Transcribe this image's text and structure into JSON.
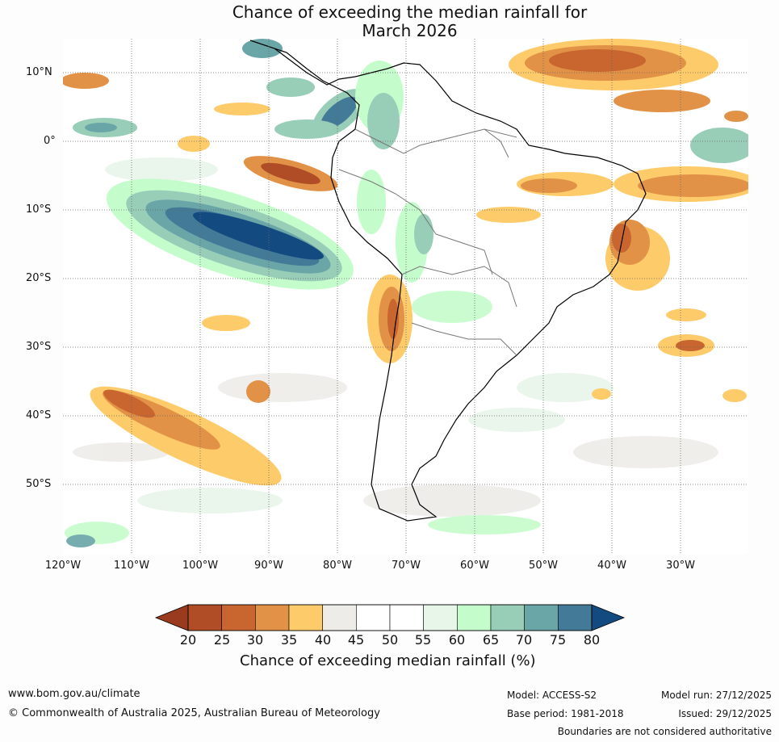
{
  "title_line1": "Chance of exceeding the median rainfall for",
  "title_line2": "March 2026",
  "latitude_labels": [
    "10°N",
    "0°",
    "10°S",
    "20°S",
    "30°S",
    "40°S",
    "50°S"
  ],
  "longitude_labels": [
    "120°W",
    "110°W",
    "100°W",
    "90°W",
    "80°W",
    "70°W",
    "60°W",
    "50°W",
    "40°W",
    "30°W"
  ],
  "colorbar": {
    "title": "Chance of exceeding median rainfall (%)",
    "ticks": [
      "20",
      "25",
      "30",
      "35",
      "40",
      "45",
      "50",
      "55",
      "60",
      "65",
      "70",
      "75",
      "80"
    ],
    "colors": [
      "#9a3b1f",
      "#b04d26",
      "#c96630",
      "#e29247",
      "#fecb6a",
      "#eeece8",
      "#ffffff",
      "#ffffff",
      "#e8f5e9",
      "#c5fccc",
      "#98cdb8",
      "#6aa5a8",
      "#437a98",
      "#134a7f"
    ]
  },
  "footer": {
    "url": "www.bom.gov.au/climate",
    "copyright": "© Commonwealth of Australia 2025, Australian Bureau of Meteorology",
    "model": "Model: ACCESS-S2",
    "base_period": "Base period: 1981-2018",
    "model_run": "Model run: 27/12/2025",
    "issued": "Issued: 29/12/2025",
    "disclaimer": "Boundaries are not considered authoritative"
  }
}
